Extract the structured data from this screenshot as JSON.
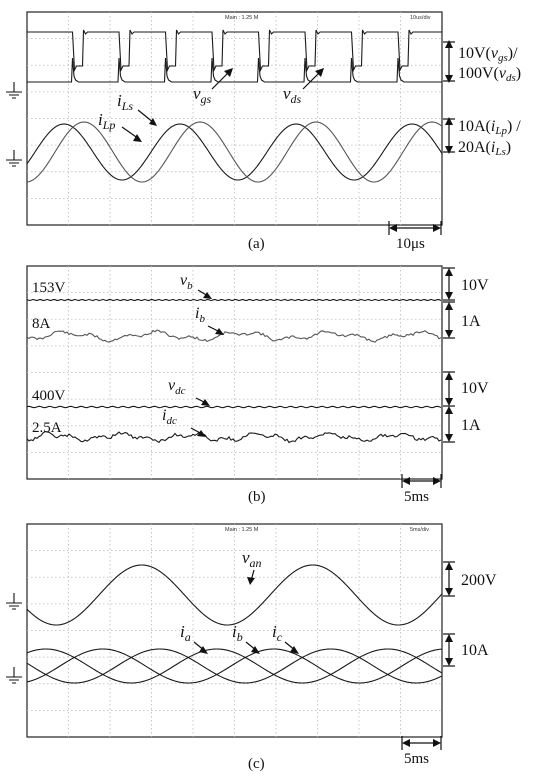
{
  "chart_data": [
    {
      "type": "line",
      "panel_label": "(a)",
      "header_center": "Main : 1.25 M",
      "header_right": "10us/div",
      "time_scale": "10μs",
      "series": [
        {
          "name": "v_gs",
          "label_main": "v",
          "label_sub": "gs",
          "kind": "square",
          "period_us": 10.0
        },
        {
          "name": "v_ds",
          "label_main": "v",
          "label_sub": "ds",
          "kind": "square",
          "period_us": 10.0
        },
        {
          "name": "i_Lp",
          "label_main": "i",
          "label_sub": "Lp",
          "kind": "sine",
          "period_us": 25.0
        },
        {
          "name": "i_Ls",
          "label_main": "i",
          "label_sub": "Ls",
          "kind": "sine",
          "period_us": 25.0
        }
      ],
      "scales": [
        {
          "line1": "10V(",
          "line1_main": "v",
          "line1_sub": "gs",
          "line1_end": ")/",
          "line2": "100V(",
          "line2_main": "v",
          "line2_sub": "ds",
          "line2_end": ")"
        },
        {
          "line1": "10A(",
          "line1_main": "i",
          "line1_sub": "Lp",
          "line1_end": ") /",
          "line2": "20A(",
          "line2_main": "i",
          "line2_sub": "Ls",
          "line2_end": ")"
        }
      ]
    },
    {
      "type": "line",
      "panel_label": "(b)",
      "time_scale": "5ms",
      "series": [
        {
          "name": "v_b",
          "label_main": "v",
          "label_sub": "b",
          "level": "153V",
          "scale": "10V"
        },
        {
          "name": "i_b",
          "label_main": "i",
          "label_sub": "b",
          "level": "8A",
          "scale": "1A"
        },
        {
          "name": "v_dc",
          "label_main": "v",
          "label_sub": "dc",
          "level": "400V",
          "scale": "10V"
        },
        {
          "name": "i_dc",
          "label_main": "i",
          "label_sub": "dc",
          "level": "2.5A",
          "scale": "1A"
        }
      ]
    },
    {
      "type": "line",
      "panel_label": "(c)",
      "header_center": "Main : 1.25 M",
      "header_right": "5ms/div",
      "time_scale": "5ms",
      "series": [
        {
          "name": "v_an",
          "label_main": "v",
          "label_sub": "an",
          "scale": "200V",
          "period_ms": 20
        },
        {
          "name": "i_a",
          "label_main": "i",
          "label_sub": "a",
          "scale": "10A",
          "phase_deg": 0
        },
        {
          "name": "i_b",
          "label_main": "i",
          "label_sub": "b",
          "scale": "10A",
          "phase_deg": -120
        },
        {
          "name": "i_c",
          "label_main": "i",
          "label_sub": "c",
          "scale": "10A",
          "phase_deg": 120
        }
      ]
    }
  ]
}
